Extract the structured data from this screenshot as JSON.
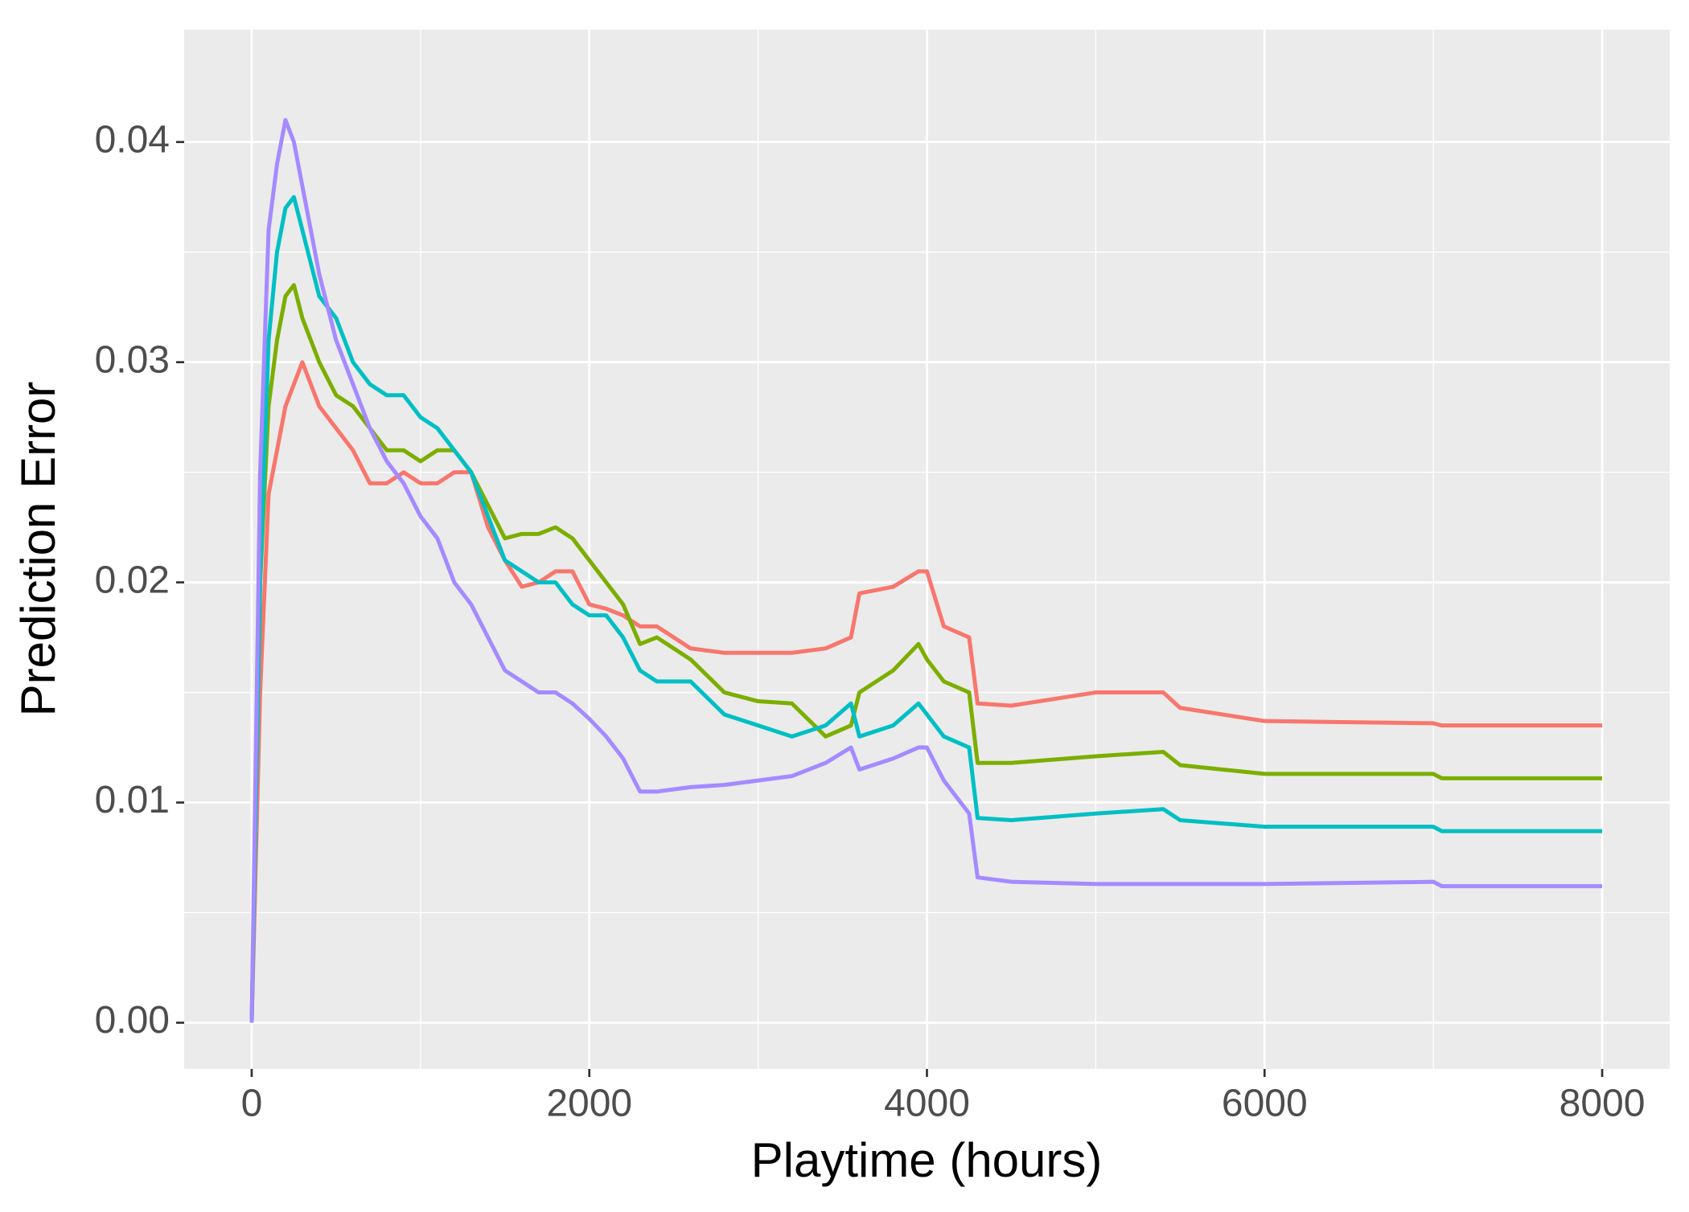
{
  "chart_data": {
    "type": "line",
    "xlabel": "Playtime (hours)",
    "ylabel": "Prediction Error",
    "x": [
      0,
      50,
      100,
      150,
      200,
      250,
      300,
      400,
      500,
      600,
      700,
      800,
      900,
      1000,
      1100,
      1200,
      1300,
      1400,
      1500,
      1600,
      1700,
      1800,
      1900,
      2000,
      2100,
      2200,
      2300,
      2400,
      2600,
      2800,
      3000,
      3200,
      3400,
      3550,
      3600,
      3800,
      3950,
      4000,
      4100,
      4250,
      4300,
      4500,
      5000,
      5400,
      5500,
      6000,
      7000,
      7050,
      8000
    ],
    "series": [
      {
        "color": "#F8766D",
        "values": [
          0,
          0.015,
          0.024,
          0.026,
          0.028,
          0.029,
          0.03,
          0.028,
          0.027,
          0.026,
          0.0245,
          0.0245,
          0.025,
          0.0245,
          0.0245,
          0.025,
          0.025,
          0.0225,
          0.021,
          0.0198,
          0.02,
          0.0205,
          0.0205,
          0.019,
          0.0188,
          0.0185,
          0.018,
          0.018,
          0.017,
          0.0168,
          0.0168,
          0.0168,
          0.017,
          0.0175,
          0.0195,
          0.0198,
          0.0205,
          0.0205,
          0.018,
          0.0175,
          0.0145,
          0.0144,
          0.015,
          0.015,
          0.0143,
          0.0137,
          0.0136,
          0.0135,
          0.0135
        ]
      },
      {
        "color": "#7CAE00",
        "values": [
          0,
          0.02,
          0.028,
          0.031,
          0.033,
          0.0335,
          0.032,
          0.03,
          0.0285,
          0.028,
          0.027,
          0.026,
          0.026,
          0.0255,
          0.026,
          0.026,
          0.025,
          0.0235,
          0.022,
          0.0222,
          0.0222,
          0.0225,
          0.022,
          0.021,
          0.02,
          0.019,
          0.0172,
          0.0175,
          0.0165,
          0.015,
          0.0146,
          0.0145,
          0.013,
          0.0135,
          0.015,
          0.016,
          0.0172,
          0.0165,
          0.0155,
          0.015,
          0.0118,
          0.0118,
          0.0121,
          0.0123,
          0.0117,
          0.0113,
          0.0113,
          0.0111,
          0.0111
        ]
      },
      {
        "color": "#00BFC4",
        "values": [
          0,
          0.02,
          0.031,
          0.035,
          0.037,
          0.0375,
          0.036,
          0.033,
          0.032,
          0.03,
          0.029,
          0.0285,
          0.0285,
          0.0275,
          0.027,
          0.026,
          0.025,
          0.023,
          0.021,
          0.0205,
          0.02,
          0.02,
          0.019,
          0.0185,
          0.0185,
          0.0175,
          0.016,
          0.0155,
          0.0155,
          0.014,
          0.0135,
          0.013,
          0.0135,
          0.0145,
          0.013,
          0.0135,
          0.0145,
          0.014,
          0.013,
          0.0125,
          0.0093,
          0.0092,
          0.0095,
          0.0097,
          0.0092,
          0.0089,
          0.0089,
          0.0087,
          0.0087
        ]
      },
      {
        "color": "#A58AFF",
        "values": [
          0,
          0.025,
          0.036,
          0.039,
          0.041,
          0.04,
          0.038,
          0.034,
          0.031,
          0.029,
          0.027,
          0.0255,
          0.0245,
          0.023,
          0.022,
          0.02,
          0.019,
          0.0175,
          0.016,
          0.0155,
          0.015,
          0.015,
          0.0145,
          0.0138,
          0.013,
          0.012,
          0.0105,
          0.0105,
          0.0107,
          0.0108,
          0.011,
          0.0112,
          0.0118,
          0.0125,
          0.0115,
          0.012,
          0.0125,
          0.0125,
          0.011,
          0.0095,
          0.0066,
          0.0064,
          0.0063,
          0.0063,
          0.0063,
          0.0063,
          0.0064,
          0.0062,
          0.0062
        ]
      }
    ],
    "xlim": [
      -400,
      8400
    ],
    "xticks": [
      0,
      2000,
      4000,
      6000,
      8000
    ],
    "xminor": [
      1000,
      3000,
      5000,
      7000
    ],
    "ylim": [
      -0.0021,
      0.0451
    ],
    "yticks": [
      {
        "value": 0,
        "label": "0.00"
      },
      0.01,
      0.02,
      0.03,
      0.04
    ],
    "yminor": [
      0.005,
      0.015,
      0.025,
      0.035
    ],
    "grid": true
  }
}
